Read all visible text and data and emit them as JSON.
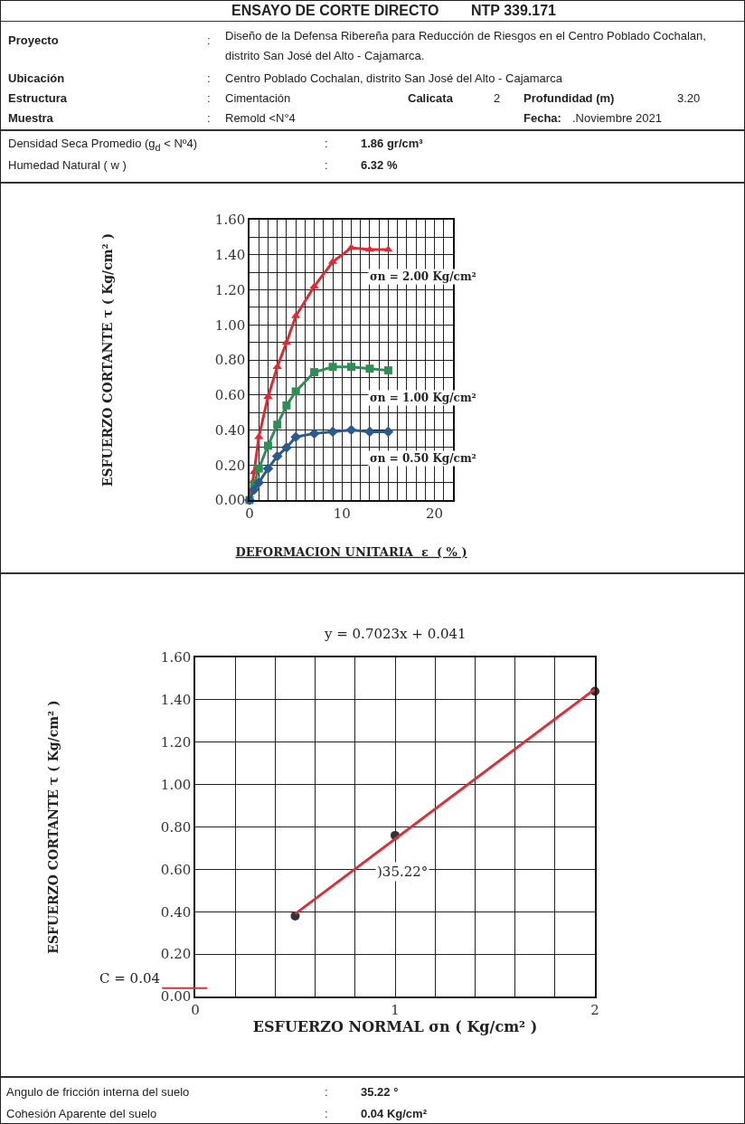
{
  "chart_data": [
    {
      "type": "other",
      "title": "ENSAYO DE CORTE DIRECTO",
      "subtitle": "NTP 339.171",
      "annotations": [
        "Proyecto",
        ":",
        "Diseño de la Defensa Ribereña para Reducción de Riesgos en el Centro Poblado Cochalan, distrito San José del Alto - Cajamarca.",
        "Ubicación",
        ":",
        "Centro Poblado Cochalan, distrito San José del Alto - Cajamarca",
        "Estructura",
        ":",
        "Cimentación",
        "Calicata",
        "2",
        "Profundidad (m)",
        "3.20",
        "Muestra",
        ":",
        "Remold <N°4",
        "Fecha:",
        ".Noviembre 2021",
        "Densidad Seca Promedio (g$_{d}$ < Nº4)",
        ":",
        "1.86 gr/cm³",
        "Humedad Natural ( w )",
        ":",
        "6.32 %"
      ]
    },
    {
      "type": "line",
      "xlabel": "DEFORMACION UNITARIA  ε  ( % )",
      "ylabel": "ESFUERZO CORTANTE τ ( Kg/cm² )",
      "x": [
        0,
        0.5,
        1,
        2,
        3,
        4,
        5,
        7,
        9,
        11,
        13,
        15
      ],
      "series": [
        {
          "name": "σn = 2.00 Kg/cm²",
          "color": "#e8262e",
          "marker": "triangle",
          "values": [
            0,
            0.16,
            0.36,
            0.59,
            0.76,
            0.9,
            1.05,
            1.22,
            1.36,
            1.44,
            1.43,
            1.43
          ]
        },
        {
          "name": "σn = 1.00 Kg/cm²",
          "color": "#2e8f55",
          "marker": "square",
          "values": [
            0,
            0.09,
            0.18,
            0.31,
            0.43,
            0.54,
            0.62,
            0.73,
            0.76,
            0.76,
            0.75,
            0.74
          ]
        },
        {
          "name": "σn = 0.50 Kg/cm²",
          "color": "#2b5b8c",
          "marker": "diamond",
          "values": [
            0,
            0.06,
            0.1,
            0.18,
            0.25,
            0.3,
            0.36,
            0.38,
            0.39,
            0.4,
            0.39,
            0.39
          ]
        }
      ],
      "xlim": [
        0,
        22
      ],
      "xticks": [
        0,
        {
          "value": 1,
          "label": null
        },
        {
          "value": 2,
          "label": null
        },
        {
          "value": 3,
          "label": null
        },
        {
          "value": 4,
          "label": null
        },
        {
          "value": 5,
          "label": null
        },
        {
          "value": 6,
          "label": null
        },
        {
          "value": 7,
          "label": null
        },
        {
          "value": 8,
          "label": null
        },
        {
          "value": 9,
          "label": null
        },
        10,
        {
          "value": 11,
          "label": null
        },
        {
          "value": 12,
          "label": null
        },
        {
          "value": 13,
          "label": null
        },
        {
          "value": 14,
          "label": null
        },
        {
          "value": 15,
          "label": null
        },
        {
          "value": 16,
          "label": null
        },
        {
          "value": 17,
          "label": null
        },
        {
          "value": 18,
          "label": null
        },
        {
          "value": 19,
          "label": null
        },
        20,
        {
          "value": 21,
          "label": null
        },
        {
          "value": 22,
          "label": null
        }
      ],
      "ylim": [
        0,
        1.6
      ],
      "yticks": [
        {
          "value": 0,
          "label": "0.00"
        },
        {
          "value": 0.1,
          "label": null
        },
        {
          "value": 0.2,
          "label": "0.20"
        },
        {
          "value": 0.3,
          "label": null
        },
        {
          "value": 0.4,
          "label": "0.40"
        },
        {
          "value": 0.5,
          "label": null
        },
        {
          "value": 0.6,
          "label": "0.60"
        },
        {
          "value": 0.7,
          "label": null
        },
        {
          "value": 0.8,
          "label": "0.80"
        },
        {
          "value": 0.9,
          "label": null
        },
        {
          "value": 1,
          "label": "1.00"
        },
        {
          "value": 1.1,
          "label": null
        },
        {
          "value": 1.2,
          "label": "1.20"
        },
        {
          "value": 1.3,
          "label": null
        },
        {
          "value": 1.4,
          "label": "1.40"
        },
        {
          "value": 1.5,
          "label": null
        },
        {
          "value": 1.6,
          "label": "1.60"
        }
      ],
      "grid": true,
      "legend": false,
      "line_style": "solid"
    },
    {
      "type": "scatter",
      "xlabel": "ESFUERZO NORMAL σn ( Kg/cm² )",
      "ylabel": "ESFUERZO CORTANTE τ ( Kg/cm² )",
      "series": [
        {
          "color": "#333333",
          "marker": "circle",
          "x": [
            0.5,
            1,
            2
          ],
          "values": [
            0.38,
            0.76,
            1.44
          ]
        },
        {
          "type": "line",
          "color": "#d9303a",
          "marker": "none",
          "x": [
            0.5,
            2
          ],
          "values": [
            0.39,
            1.45
          ]
        }
      ],
      "annotations": [
        "y = 0.7023x + 0.041",
        {
          "text": ")35.22°",
          "x": 0.9,
          "y": 0.67
        },
        "C = 0.04"
      ],
      "xlim": [
        0,
        2
      ],
      "xticks": [
        0,
        {
          "value": 0.2,
          "label": null
        },
        {
          "value": 0.4,
          "label": null
        },
        {
          "value": 0.6,
          "label": null
        },
        {
          "value": 0.8,
          "label": null
        },
        1,
        {
          "value": 1.2,
          "label": null
        },
        {
          "value": 1.4,
          "label": null
        },
        {
          "value": 1.6,
          "label": null
        },
        {
          "value": 1.8,
          "label": null
        },
        2
      ],
      "ylim": [
        0,
        1.6
      ],
      "yticks": [
        {
          "value": 0,
          "label": "0.00"
        },
        {
          "value": 0.2,
          "label": "0.20"
        },
        {
          "value": 0.4,
          "label": "0.40"
        },
        {
          "value": 0.6,
          "label": "0.60"
        },
        {
          "value": 0.8,
          "label": "0.80"
        },
        {
          "value": 1,
          "label": "1.00"
        },
        {
          "value": 1.2,
          "label": "1.20"
        },
        {
          "value": 1.4,
          "label": "1.40"
        },
        {
          "value": 1.6,
          "label": "1.60"
        }
      ],
      "grid": true,
      "legend": false
    },
    {
      "type": "other",
      "annotations": [
        "Angulo de fricción interna del suelo",
        ":",
        "35.22 °",
        "Cohesión Aparente del suelo",
        ":",
        "0.04 Kg/cm²"
      ]
    }
  ]
}
